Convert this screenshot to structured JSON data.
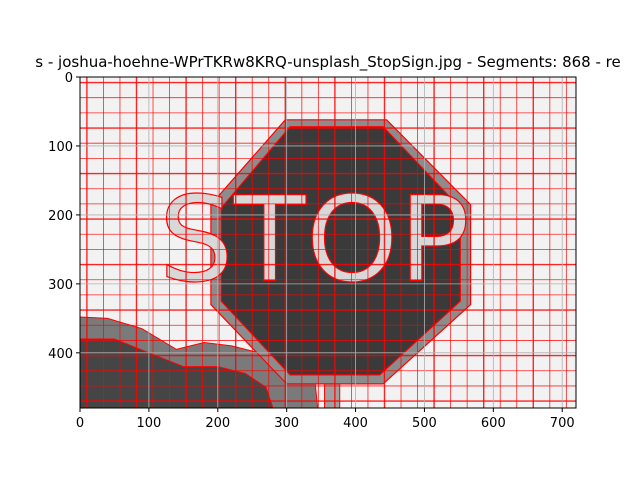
{
  "chart_data": {
    "type": "heatmap",
    "title": "s - joshua-hoehne-WPrTKRw8KRQ-unsplash_StopSign.jpg - Segments: 868 - re",
    "xlabel": "",
    "ylabel": "",
    "xlim": [
      0,
      720
    ],
    "ylim": [
      480,
      0
    ],
    "x_ticks": [
      0,
      100,
      200,
      300,
      400,
      500,
      600,
      700
    ],
    "y_ticks": [
      0,
      100,
      200,
      300,
      400
    ],
    "grid": true,
    "image_text": "STOP",
    "segments": 868,
    "colors": {
      "boundary": "#ff0000",
      "sign_face": "#3a3a3a",
      "sign_rim": "#8c8c8c",
      "background": "#f2f2f2",
      "ground_dark": "#454545",
      "ground_mid": "#7a7a7a"
    }
  }
}
